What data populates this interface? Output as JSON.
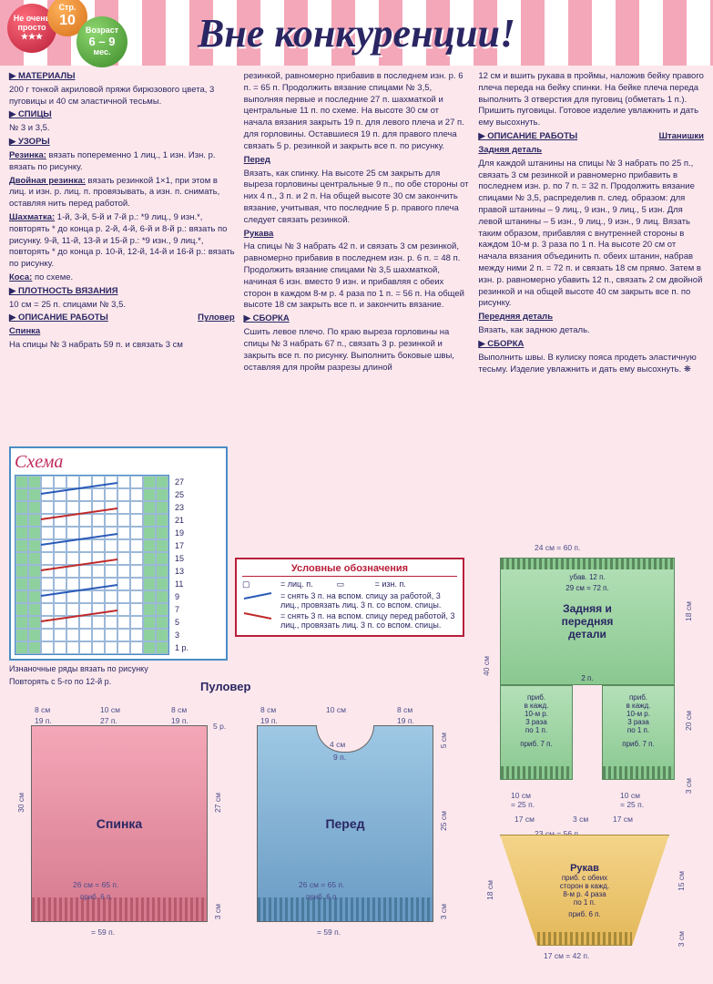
{
  "header": {
    "title": "Вне конкуренции!",
    "balloon_red_line1": "Не очень",
    "balloon_red_line2": "просто",
    "balloon_red_stars": "★★★",
    "balloon_orange_line1": "Стр.",
    "balloon_orange_line2": "10",
    "balloon_green_line1": "Возраст",
    "balloon_green_line2": "6 – 9",
    "balloon_green_line3": "мес."
  },
  "col1": {
    "materials_head": "▶ МАТЕРИАЛЫ",
    "materials": "200 г тонкой акриловой пряжи бирюзового цвета, 3 пуговицы и 40 см эластичной тесьмы.",
    "needles_head": "▶ СПИЦЫ",
    "needles": "№ 3 и 3,5.",
    "patterns_head": "▶ УЗОРЫ",
    "rib_head": "Резинка:",
    "rib": " вязать попеременно 1 лиц., 1 изн. Изн. р. вязать по рисунку.",
    "drib_head": "Двойная резинка:",
    "drib": " вязать резинкой 1×1, при этом в лиц. и изн. р. лиц. п. провязывать, а изн. п. снимать, оставляя нить перед работой.",
    "check_head": "Шахматка:",
    "check": " 1-й, 3-й, 5-й и 7-й р.: *9 лиц., 9 изн.*, повторять * до конца р. 2-й, 4-й, 6-й и 8-й р.: вязать по рисунку. 9-й, 11-й, 13-й и 15-й р.: *9 изн., 9 лиц.*, повторять * до конца р. 10-й, 12-й, 14-й и 16-й р.: вязать по рисунку.",
    "cable_head": "Коса:",
    "cable": " по схеме.",
    "gauge_head": "▶ ПЛОТНОСТЬ ВЯЗАНИЯ",
    "gauge": "10 см = 25 п. спицами № 3,5.",
    "work_head": "▶ ОПИСАНИЕ РАБОТЫ",
    "work_pullover": "Пуловер",
    "back_head": "Спинка",
    "back": "На спицы № 3 набрать 59 п. и связать 3 см"
  },
  "col2": {
    "p1": "резинкой, равномерно прибавив в последнем изн. р. 6 п. = 65 п. Продолжить вязание спицами № 3,5, выполняя первые и последние 27 п. шахматкой и центральные 11 п. по схеме. На высоте 30 см от начала вязания закрыть 19 п. для левого плеча и 27 п. для горловины. Оставшиеся 19 п. для правого плеча связать 5 р. резинкой и закрыть все п. по рисунку.",
    "front_head": "Перед",
    "front": "Вязать, как спинку. На высоте 25 см закрыть для выреза горловины центральные 9 п., по обе стороны от них 4 п., 3 п. и 2 п. На общей высоте 30 см закончить вязание, учитывая, что последние 5 р. правого плеча следует связать резинкой.",
    "sleeve_head": "Рукава",
    "sleeve": "На спицы № 3 набрать 42 п. и связать 3 см резинкой, равномерно прибавив в последнем изн. р. 6 п. = 48 п. Продолжить вязание спицами № 3,5 шахматкой, начиная 6 изн. вместо 9 изн. и прибавляя с обеих сторон в каждом 8-м р. 4 раза по 1 п. = 56 п. На общей высоте 18 см закрыть все п. и закончить вязание.",
    "assembly_head": "▶ СБОРКА",
    "assembly": "Сшить левое плечо. По краю выреза горловины на спицы № 3 набрать 67 п., связать 3 р. резинкой и закрыть все п. по рисунку. Выполнить боковые швы, оставляя для пройм разрезы длиной"
  },
  "col3": {
    "p1": "12 см и вшить рукава в проймы, наложив бейку правого плеча переда на бейку спинки. На бейке плеча переда выполнить 3 отверстия для пуговиц (обметать 1 п.). Пришить пуговицы. Готовое изделие увлажнить и дать ему высохнуть.",
    "work2_head": "▶ ОПИСАНИЕ РАБОТЫ",
    "work2_item": "Штанишки",
    "backd_head": "Задняя деталь",
    "backd": "Для каждой штанины на спицы № 3 набрать по 25 п., связать 3 см резинкой и равномерно прибавить в последнем изн. р. по 7 п. = 32 п. Продолжить вязание спицами № 3,5, распределив п. след. образом: для правой штанины – 9 лиц., 9 изн., 9 лиц., 5 изн. Для левой штанины – 5 изн., 9 лиц., 9 изн., 9 лиц. Вязать таким образом, прибавляя с внутренней стороны в каждом 10-м р. 3 раза по 1 п. На высоте 20 см от начала вязания объединить п. обеих штанин, набрав между ними 2 п. = 72 п. и связать 18 см прямо. Затем в изн. р. равномерно убавить 12 п., связать 2 см двойной резинкой и на общей высоте 40 см закрыть все п. по рисунку.",
    "frontd_head": "Передняя деталь",
    "frontd": "Вязать, как заднюю деталь.",
    "assembly2_head": "▶ СБОРКА",
    "assembly2": "Выполнить швы. В кулиску пояса продеть эластичную тесьму. Изделие увлажнить и дать ему высохнуть. ❋"
  },
  "schema": {
    "title": "Схема",
    "rows": [
      "27",
      "25",
      "23",
      "21",
      "19",
      "17",
      "15",
      "13",
      "11",
      "9",
      "7",
      "5",
      "3",
      "1 р."
    ],
    "note1": "Изнаночные ряды вязать по рисунку",
    "note2": "Повторять с 5-го по 12-й р."
  },
  "legend": {
    "title": "Условные обозначения",
    "lic": "= лиц. п.",
    "izn": "= изн. п.",
    "blue": "= снять 3 п. на вспом. спицу за работой, 3 лиц., провязать лиц. 3 п. со вспом. спицы.",
    "red": "= снять 3 п. на вспом. спицу перед работой, 3 лиц., провязать лиц. 3 п. со вспом. спицы."
  },
  "pullover": {
    "title": "Пуловер",
    "back_label": "Спинка",
    "front_label": "Перед",
    "top_8cm": "8 см",
    "top_10cm": "10 см",
    "top_19p": "19 п.",
    "top_27p": "27 п.",
    "h_30cm": "30 см",
    "h_27cm": "27 см",
    "h_25cm": "25 см",
    "h_3cm": "3 см",
    "h_5cm": "5 см",
    "h_5p": "5 р.",
    "neck_4cm": "4 см",
    "neck_9p": "9 п.",
    "w_26cm": "26 см = 65 п.",
    "w_59p": "= 59 п.",
    "inc_6p": "приб. 6 п."
  },
  "pants": {
    "top_24cm": "24 см = 60 п.",
    "dec_12p": "убав. 12 п.",
    "top_29cm": "29 см = 72 п.",
    "label1": "Задняя и",
    "label2": "передняя",
    "label3": "детали",
    "crotch_2p": "2 п.",
    "leg_inc1": "приб.",
    "leg_inc2": "в кажд.",
    "leg_inc3": "10-м р.",
    "leg_inc4": "3 раза",
    "leg_inc5": "по 1 п.",
    "leg_inc6": "приб. 7 п.",
    "h_40cm": "40 см",
    "h_18cm": "18 см",
    "h_20cm": "20 см",
    "h_3cm": "3 см",
    "leg_10cm": "10 см",
    "leg_25p": "= 25 п.",
    "bot_17cm": "17 см",
    "bot_3cm": "3 см"
  },
  "sleeve": {
    "label": "Рукав",
    "inc1": "приб. с обеих",
    "inc2": "сторон в кажд.",
    "inc3": "8-м р. 4 раза",
    "inc4": "по 1 п.",
    "inc5": "приб. 6 п.",
    "top_23cm": "23 см = 56 п.",
    "bot_17cm": "17 см = 42 п.",
    "h_18cm": "18 см",
    "h_15cm": "15 см",
    "h_3cm": "3 см"
  }
}
